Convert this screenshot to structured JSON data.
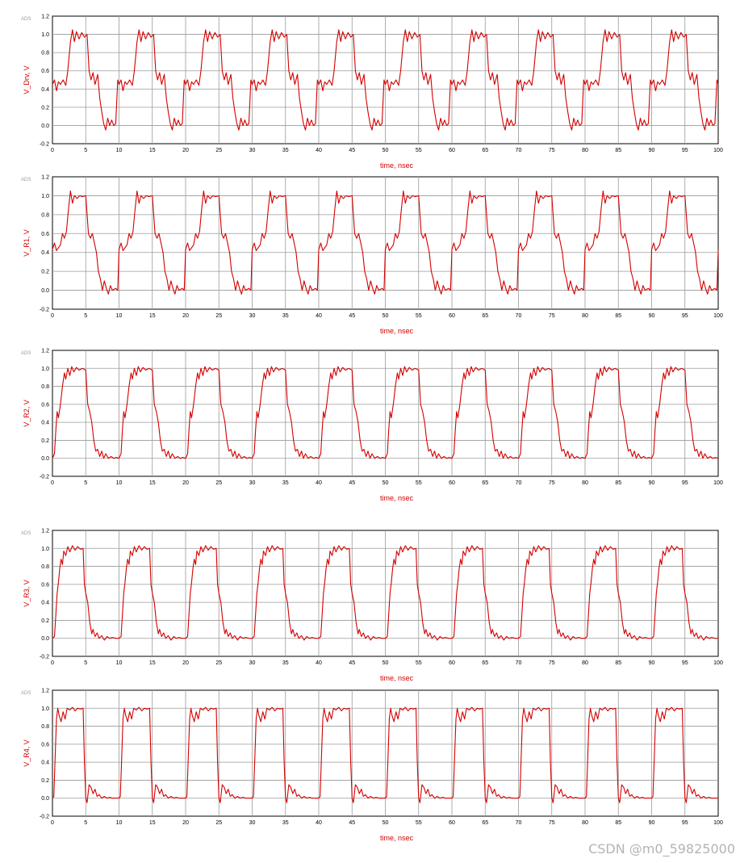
{
  "chart_data": [
    {
      "type": "line",
      "badge": "ADS",
      "ylabel": "V_Drv, V",
      "xlabel": "time, nsec",
      "xlim": [
        0,
        100
      ],
      "ylim": [
        -0.2,
        1.2
      ],
      "x_ticks": [
        0,
        5,
        10,
        15,
        20,
        25,
        30,
        35,
        40,
        45,
        50,
        55,
        60,
        65,
        70,
        75,
        80,
        85,
        90,
        95,
        100
      ],
      "y_ticks": [
        "-0.2",
        "0.0",
        "0.2",
        "0.4",
        "0.6",
        "0.8",
        "1.0",
        "1.2"
      ],
      "series": [
        {
          "color": "#d40000",
          "period_ns": 10,
          "points": [
            [
              0,
              0.45
            ],
            [
              0.3,
              0.5
            ],
            [
              0.6,
              0.38
            ],
            [
              0.9,
              0.48
            ],
            [
              1.2,
              0.45
            ],
            [
              1.6,
              0.5
            ],
            [
              2.0,
              0.44
            ],
            [
              2.3,
              0.6
            ],
            [
              2.7,
              0.92
            ],
            [
              3.0,
              1.05
            ],
            [
              3.3,
              0.92
            ],
            [
              3.6,
              1.03
            ],
            [
              4.0,
              0.95
            ],
            [
              4.4,
              1.02
            ],
            [
              4.8,
              0.97
            ],
            [
              5.2,
              1.0
            ],
            [
              5.5,
              0.6
            ],
            [
              5.8,
              0.5
            ],
            [
              6.1,
              0.58
            ],
            [
              6.4,
              0.45
            ],
            [
              6.8,
              0.56
            ],
            [
              7.1,
              0.3
            ],
            [
              7.4,
              0.15
            ],
            [
              7.7,
              0.02
            ],
            [
              8.0,
              -0.05
            ],
            [
              8.3,
              0.08
            ],
            [
              8.6,
              0.0
            ],
            [
              8.9,
              0.06
            ],
            [
              9.2,
              0.0
            ],
            [
              9.5,
              0.02
            ],
            [
              9.8,
              0.5
            ],
            [
              10,
              0.45
            ]
          ]
        }
      ]
    },
    {
      "type": "line",
      "badge": "ADS",
      "ylabel": "V_R1, V",
      "xlabel": "time, nsec",
      "xlim": [
        0,
        100
      ],
      "ylim": [
        -0.2,
        1.2
      ],
      "x_ticks": [
        0,
        5,
        10,
        15,
        20,
        25,
        30,
        35,
        40,
        45,
        50,
        55,
        60,
        65,
        70,
        75,
        80,
        85,
        90,
        95,
        100
      ],
      "y_ticks": [
        "-0.2",
        "0.0",
        "0.2",
        "0.4",
        "0.6",
        "0.8",
        "1.0",
        "1.2"
      ],
      "series": [
        {
          "color": "#d40000",
          "period_ns": 10,
          "points": [
            [
              0,
              0.43
            ],
            [
              0.3,
              0.5
            ],
            [
              0.6,
              0.42
            ],
            [
              0.9,
              0.45
            ],
            [
              1.2,
              0.48
            ],
            [
              1.5,
              0.6
            ],
            [
              1.8,
              0.55
            ],
            [
              2.1,
              0.62
            ],
            [
              2.4,
              0.85
            ],
            [
              2.7,
              1.05
            ],
            [
              3.0,
              0.92
            ],
            [
              3.3,
              1.0
            ],
            [
              3.7,
              0.97
            ],
            [
              4.1,
              1.0
            ],
            [
              4.5,
              0.99
            ],
            [
              5.0,
              1.0
            ],
            [
              5.4,
              0.6
            ],
            [
              5.7,
              0.55
            ],
            [
              6.0,
              0.6
            ],
            [
              6.3,
              0.5
            ],
            [
              6.6,
              0.4
            ],
            [
              6.9,
              0.2
            ],
            [
              7.2,
              0.12
            ],
            [
              7.5,
              0.0
            ],
            [
              7.8,
              0.1
            ],
            [
              8.1,
              0.02
            ],
            [
              8.4,
              -0.04
            ],
            [
              8.7,
              0.05
            ],
            [
              9.0,
              0.0
            ],
            [
              9.5,
              0.02
            ],
            [
              9.8,
              0.0
            ],
            [
              10,
              0.43
            ]
          ]
        }
      ]
    },
    {
      "type": "line",
      "badge": "ADS",
      "ylabel": "V_R2, V",
      "xlabel": "time, nsec",
      "xlim": [
        0,
        100
      ],
      "ylim": [
        -0.2,
        1.2
      ],
      "x_ticks": [
        0,
        5,
        10,
        15,
        20,
        25,
        30,
        35,
        40,
        45,
        50,
        55,
        60,
        65,
        70,
        75,
        80,
        85,
        90,
        95,
        100
      ],
      "y_ticks": [
        "-0.2",
        "0.0",
        "0.2",
        "0.4",
        "0.6",
        "0.8",
        "1.0",
        "1.2"
      ],
      "series": [
        {
          "color": "#d40000",
          "period_ns": 10,
          "points": [
            [
              0,
              0.0
            ],
            [
              0.3,
              0.05
            ],
            [
              0.5,
              0.3
            ],
            [
              0.7,
              0.52
            ],
            [
              0.9,
              0.45
            ],
            [
              1.2,
              0.6
            ],
            [
              1.5,
              0.8
            ],
            [
              1.8,
              0.95
            ],
            [
              2.0,
              0.88
            ],
            [
              2.3,
              1.0
            ],
            [
              2.6,
              0.92
            ],
            [
              2.9,
              1.02
            ],
            [
              3.2,
              0.96
            ],
            [
              3.6,
              1.01
            ],
            [
              4.0,
              0.98
            ],
            [
              4.5,
              1.0
            ],
            [
              5.0,
              0.98
            ],
            [
              5.3,
              0.6
            ],
            [
              5.6,
              0.52
            ],
            [
              5.9,
              0.4
            ],
            [
              6.2,
              0.2
            ],
            [
              6.5,
              0.08
            ],
            [
              6.8,
              0.1
            ],
            [
              7.1,
              0.02
            ],
            [
              7.4,
              0.08
            ],
            [
              7.7,
              0.0
            ],
            [
              8.0,
              0.05
            ],
            [
              8.4,
              0.0
            ],
            [
              8.8,
              0.02
            ],
            [
              9.2,
              0.0
            ],
            [
              9.6,
              0.01
            ],
            [
              10,
              0.0
            ]
          ]
        }
      ]
    },
    {
      "type": "line",
      "badge": "ADS",
      "ylabel": "V_R3, V",
      "xlabel": "time, nsec",
      "xlim": [
        0,
        100
      ],
      "ylim": [
        -0.2,
        1.2
      ],
      "x_ticks": [
        0,
        5,
        10,
        15,
        20,
        25,
        30,
        35,
        40,
        45,
        50,
        55,
        60,
        65,
        70,
        75,
        80,
        85,
        90,
        95,
        100
      ],
      "y_ticks": [
        "-0.2",
        "0.0",
        "0.2",
        "0.4",
        "0.6",
        "0.8",
        "1.0",
        "1.2"
      ],
      "series": [
        {
          "color": "#d40000",
          "period_ns": 10,
          "points": [
            [
              0,
              0.0
            ],
            [
              0.3,
              0.02
            ],
            [
              0.5,
              0.25
            ],
            [
              0.7,
              0.5
            ],
            [
              0.9,
              0.62
            ],
            [
              1.1,
              0.78
            ],
            [
              1.3,
              0.88
            ],
            [
              1.5,
              0.82
            ],
            [
              1.7,
              0.97
            ],
            [
              2.0,
              0.92
            ],
            [
              2.3,
              1.02
            ],
            [
              2.6,
              0.96
            ],
            [
              3.0,
              1.03
            ],
            [
              3.4,
              0.98
            ],
            [
              3.8,
              1.02
            ],
            [
              4.2,
              0.99
            ],
            [
              4.6,
              1.0
            ],
            [
              4.8,
              0.6
            ],
            [
              5.0,
              0.5
            ],
            [
              5.3,
              0.4
            ],
            [
              5.6,
              0.18
            ],
            [
              5.9,
              0.05
            ],
            [
              6.1,
              0.1
            ],
            [
              6.4,
              0.02
            ],
            [
              6.7,
              0.06
            ],
            [
              7.0,
              0.0
            ],
            [
              7.4,
              0.03
            ],
            [
              7.8,
              -0.02
            ],
            [
              8.2,
              0.02
            ],
            [
              8.6,
              0.0
            ],
            [
              9.0,
              0.01
            ],
            [
              9.5,
              0.0
            ],
            [
              10,
              0.0
            ]
          ]
        }
      ]
    },
    {
      "type": "line",
      "badge": "ADS",
      "ylabel": "V_R4, V",
      "xlabel": "time, nsec",
      "xlim": [
        0,
        100
      ],
      "ylim": [
        -0.2,
        1.2
      ],
      "x_ticks": [
        0,
        5,
        10,
        15,
        20,
        25,
        30,
        35,
        40,
        45,
        50,
        55,
        60,
        65,
        70,
        75,
        80,
        85,
        90,
        95,
        100
      ],
      "y_ticks": [
        "-0.2",
        "0.0",
        "0.2",
        "0.4",
        "0.6",
        "0.8",
        "1.0",
        "1.2"
      ],
      "series": [
        {
          "color": "#d40000",
          "period_ns": 10,
          "points": [
            [
              0,
              0.0
            ],
            [
              0.2,
              0.02
            ],
            [
              0.4,
              0.45
            ],
            [
              0.6,
              0.88
            ],
            [
              0.8,
              1.0
            ],
            [
              1.0,
              0.92
            ],
            [
              1.3,
              0.85
            ],
            [
              1.6,
              0.96
            ],
            [
              1.9,
              0.88
            ],
            [
              2.2,
              1.0
            ],
            [
              2.6,
              0.98
            ],
            [
              3.0,
              1.01
            ],
            [
              3.4,
              0.97
            ],
            [
              3.8,
              1.0
            ],
            [
              4.2,
              0.99
            ],
            [
              4.6,
              1.0
            ],
            [
              4.8,
              0.4
            ],
            [
              5.0,
              0.0
            ],
            [
              5.2,
              -0.05
            ],
            [
              5.5,
              0.15
            ],
            [
              5.8,
              0.12
            ],
            [
              6.1,
              0.05
            ],
            [
              6.4,
              0.1
            ],
            [
              6.7,
              0.02
            ],
            [
              7.0,
              0.04
            ],
            [
              7.4,
              0.0
            ],
            [
              7.8,
              0.02
            ],
            [
              8.2,
              0.0
            ],
            [
              8.6,
              0.01
            ],
            [
              9.0,
              0.0
            ],
            [
              9.5,
              0.0
            ],
            [
              10,
              0.0
            ]
          ]
        }
      ]
    }
  ],
  "watermark": "CSDN @m0_59825000"
}
